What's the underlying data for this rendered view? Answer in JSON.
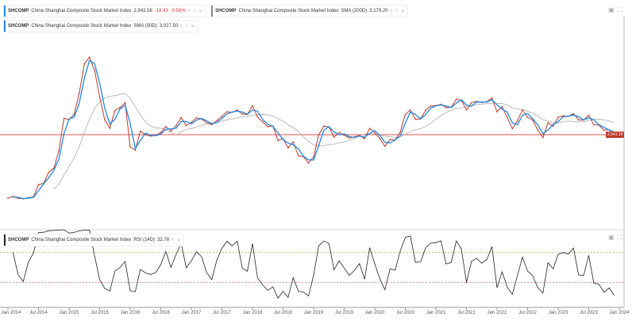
{
  "legends": [
    {
      "ticker": "SHCOMP",
      "name": "China Shanghai Composite Stock Market Index",
      "value": "2,942.56",
      "change": "-18.43",
      "change_pct": "-0.56%",
      "color": "#1e88e5"
    },
    {
      "ticker": "SHCOMP",
      "name": "China Shanghai Composite Stock Market Index",
      "indicator": "SMA (200D)",
      "value": "3,179.20",
      "color": "#888888"
    },
    {
      "ticker": "SHCOMP",
      "name": "China Shanghai Composite Stock Market Index",
      "indicator": "SMA (50D)",
      "value": "3,027.50",
      "color": "#1e88e5"
    }
  ],
  "rsi_legend": {
    "ticker": "SHCOMP",
    "name": "China Shanghai Composite Stock Market Index",
    "indicator": "RSI (14D)",
    "value": "32.78"
  },
  "ref_label": "2,941.18",
  "colors": {
    "price": "#c0392b",
    "sma50": "#1e88e5",
    "sma200": "#aaaaaa",
    "ref": "#e57373",
    "rsi": "#222222"
  },
  "chart_data": {
    "type": "line",
    "title": "China Shanghai Composite Stock Market Index",
    "y_scale": "log",
    "reference_value": 2941.18,
    "start": "Jan 2014",
    "frequency": "monthly",
    "close": [
      2033,
      2056,
      2033,
      2026,
      2039,
      2048,
      2201,
      2217,
      2363,
      2420,
      2682,
      3235,
      3210,
      3310,
      3748,
      4441,
      4612,
      4277,
      3664,
      3206,
      3053,
      3383,
      3445,
      3539,
      2738,
      2688,
      3004,
      2938,
      2917,
      2930,
      2979,
      3085,
      3005,
      3100,
      3250,
      3104,
      3159,
      3242,
      3223,
      3155,
      3117,
      3192,
      3273,
      3361,
      3349,
      3393,
      3317,
      3307,
      3481,
      3259,
      3169,
      3082,
      3095,
      2847,
      2876,
      2725,
      2821,
      2603,
      2588,
      2494,
      2585,
      2941,
      3091,
      3078,
      2899,
      2979,
      2933,
      2886,
      2905,
      2929,
      2872,
      3050,
      2977,
      2880,
      2750,
      2860,
      2852,
      2985,
      3310,
      3396,
      3218,
      3225,
      3392,
      3473,
      3483,
      3509,
      3441,
      3447,
      3615,
      3591,
      3397,
      3544,
      3568,
      3547,
      3564,
      3640,
      3361,
      3462,
      3252,
      3047,
      3186,
      3399,
      3253,
      3202,
      3024,
      2893,
      3151,
      3089,
      3255,
      3280,
      3273,
      3323,
      3205,
      3202,
      3291,
      3120,
      3110,
      3018,
      3030,
      2942
    ],
    "x_tick_labels": [
      "Jan 2014",
      "Jul 2014",
      "Jan 2015",
      "Jul 2015",
      "Jan 2016",
      "Jul 2016",
      "Jan 2017",
      "Jul 2017",
      "Jan 2018",
      "Jul 2018",
      "Jan 2019",
      "Jul 2019",
      "Jan 2020",
      "Jul 2020",
      "Jan 2021",
      "Jul 2021",
      "Jan 2022",
      "Jul 2022",
      "Jan 2023",
      "Jul 2023",
      "Jan 2024"
    ],
    "rsi_levels": [
      70,
      30
    ]
  }
}
